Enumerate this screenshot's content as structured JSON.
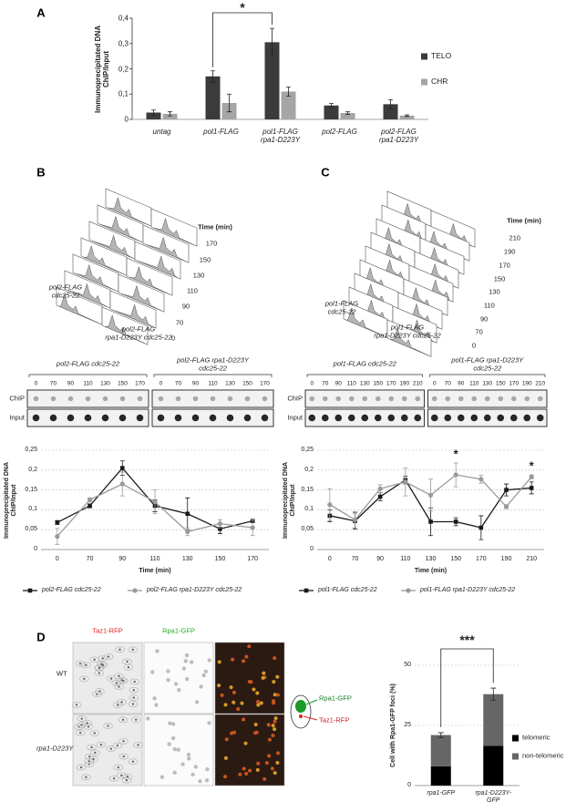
{
  "panel_labels": [
    "A",
    "B",
    "C",
    "D"
  ],
  "flow_cytometry": [
    {
      "time_header": "Time (min)",
      "times": [
        "170",
        "150",
        "130",
        "110",
        "90",
        "70",
        "0"
      ],
      "strains": [
        "pol2-FLAG\ncdc25-22",
        "pol2-FLAG\nrpa1-D223Y cdc25-22"
      ]
    },
    {
      "time_header": "Time (min)",
      "times": [
        "210",
        "190",
        "170",
        "150",
        "130",
        "110",
        "90",
        "70",
        "0"
      ],
      "strains": [
        "pol1-FLAG\ncdc25-22",
        "pol1-FLAG\nrpa1-D223Y cdc25-22"
      ]
    }
  ],
  "dot_blots": [
    {
      "groups": [
        "pol2-FLAG cdc25-22",
        "pol2-FLAG rpa1-D223Y\ncdc25-22"
      ],
      "times": [
        [
          "0",
          "70",
          "90",
          "110",
          "130",
          "150",
          "170"
        ],
        [
          "0",
          "70",
          "90",
          "110",
          "130",
          "150",
          "170"
        ]
      ],
      "rows": [
        "ChIP",
        "Input"
      ]
    },
    {
      "groups": [
        "pol1-FLAG cdc25-22",
        "pol1-FLAG rpa1-D223Y\ncdc25-22"
      ],
      "times": [
        [
          "0",
          "70",
          "90",
          "110",
          "130",
          "150",
          "170",
          "190",
          "210"
        ],
        [
          "0",
          "70",
          "90",
          "110",
          "130",
          "150",
          "170",
          "190",
          "210"
        ]
      ],
      "rows": [
        "ChIP",
        "Input"
      ]
    }
  ],
  "microscopy": {
    "channels": [
      "Taz1-RFP",
      "Rpa1-GFP"
    ],
    "strains": [
      "WT",
      "rpa1-D223Y"
    ],
    "diagram_labels": [
      "Rpa1-GFP",
      "Taz1-RFP"
    ]
  },
  "chart_data": [
    {
      "type": "bar",
      "ylabel": "Immunoprecipitated DNA\nChIP/Input",
      "categories": [
        "untag",
        "pol1-FLAG",
        "pol1-FLAG\nrpa1-D223Y",
        "pol2-FLAG",
        "pol2-FLAG\nrpa1-D223Y"
      ],
      "series": [
        {
          "name": "TELO",
          "color": "#3b3b3b",
          "values": [
            0.027,
            0.17,
            0.305,
            0.055,
            0.06
          ],
          "errors": [
            0.01,
            0.022,
            0.055,
            0.008,
            0.018
          ]
        },
        {
          "name": "CHR",
          "color": "#a5a5a5",
          "values": [
            0.022,
            0.065,
            0.11,
            0.025,
            0.015
          ],
          "errors": [
            0.008,
            0.035,
            0.018,
            0.005,
            0.003
          ]
        }
      ],
      "ylim": [
        0,
        0.4
      ],
      "yticks": [
        0,
        {
          "value": 0.1,
          "label": "0,1"
        },
        {
          "value": 0.2,
          "label": "0,2"
        },
        {
          "value": 0.3,
          "label": "0,3"
        },
        {
          "value": 0.4,
          "label": "0,4"
        }
      ],
      "grid": false,
      "annotations": [
        "*"
      ]
    },
    {
      "type": "line",
      "ylabel": "Immunoprecipitated DNA\nChIP/Input",
      "xlabel": "Time (min)",
      "categories": [
        "0",
        "70",
        "90",
        "110",
        "130",
        "150",
        "170"
      ],
      "series": [
        {
          "name": "pol2-FLAG cdc25-22",
          "color": "#1a1a1a",
          "marker": "square",
          "values": [
            0.068,
            0.11,
            0.205,
            0.11,
            0.09,
            0.052,
            0.072
          ],
          "errors": [
            0.005,
            0.005,
            0.018,
            0.015,
            0.04,
            0.012,
            0.003
          ]
        },
        {
          "name": "pol2-FLAG rpa1-D223Y cdc25-22",
          "color": "#9a9a9a",
          "marker": "circle",
          "values": [
            0.033,
            0.125,
            0.165,
            0.12,
            0.045,
            0.065,
            0.055
          ],
          "errors": [
            0.02,
            0.005,
            0.03,
            0.03,
            0.01,
            0.01,
            0.02
          ]
        }
      ],
      "ylim": [
        0,
        0.25
      ],
      "yticks": [
        0,
        {
          "value": 0.05,
          "label": "0,05"
        },
        {
          "value": 0.1,
          "label": "0,1"
        },
        {
          "value": 0.15,
          "label": "0,15"
        },
        {
          "value": 0.2,
          "label": "0,2"
        },
        {
          "value": 0.25,
          "label": "0,25"
        }
      ],
      "grid": true
    },
    {
      "type": "line",
      "ylabel": "Immunoprecipitated DNA\nChIP/Input",
      "xlabel": "Time (min)",
      "categories": [
        "0",
        "70",
        "90",
        "110",
        "130",
        "150",
        "170",
        "190",
        "210"
      ],
      "series": [
        {
          "name": "pol1-FLAG cdc25-22",
          "color": "#1a1a1a",
          "marker": "square",
          "values": [
            0.085,
            0.072,
            0.133,
            0.175,
            0.07,
            0.07,
            0.055,
            0.15,
            0.155
          ],
          "errors": [
            0.015,
            0.02,
            0.01,
            0.01,
            0.035,
            0.01,
            0.03,
            0.015,
            0.015
          ]
        },
        {
          "name": "pol1-FLAG rpa1-D223Y cdc25-22",
          "color": "#9a9a9a",
          "marker": "circle",
          "values": [
            0.113,
            0.075,
            0.153,
            0.17,
            0.137,
            0.188,
            0.177,
            0.108,
            0.183
          ],
          "errors": [
            0.04,
            0.02,
            0.01,
            0.035,
            0.04,
            0.03,
            0.01,
            0.005,
            0.005
          ]
        }
      ],
      "ylim": [
        0,
        0.25
      ],
      "yticks": [
        0,
        {
          "value": 0.05,
          "label": "0,05"
        },
        {
          "value": 0.1,
          "label": "0,1"
        },
        {
          "value": 0.15,
          "label": "0,15"
        },
        {
          "value": 0.2,
          "label": "0,2"
        },
        {
          "value": 0.25,
          "label": "0,25"
        }
      ],
      "grid": true,
      "annotations": [
        "*",
        "*"
      ]
    },
    {
      "type": "stackedbar",
      "ylabel": "Cell with Rpa1-GFP foci (%)",
      "categories": [
        "rpa1-GFP",
        "rpa1-D223Y-\nGFP"
      ],
      "series": [
        {
          "name": "telomeric",
          "color": "#000000",
          "values": [
            8,
            16.5
          ]
        },
        {
          "name": "non-telomeric",
          "color": "#666666",
          "values": [
            13,
            21.5
          ],
          "errors": [
            1,
            2.5
          ]
        }
      ],
      "ylim": [
        0,
        50
      ],
      "yticks": [
        0,
        25,
        50
      ],
      "grid": true,
      "annotations": [
        "***"
      ]
    }
  ]
}
